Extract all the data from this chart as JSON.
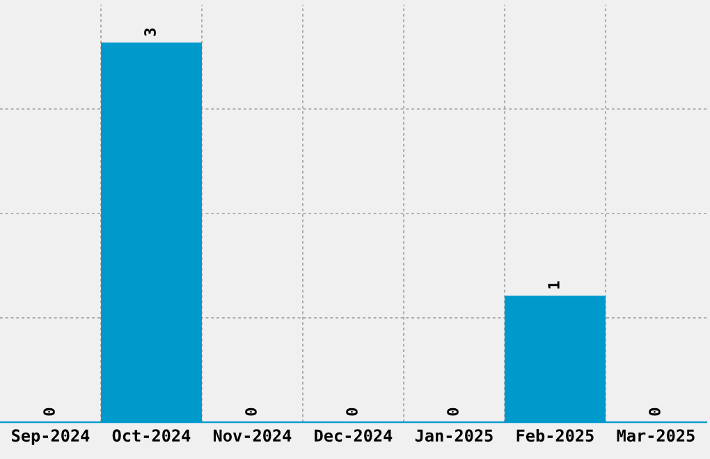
{
  "chart_data": {
    "type": "bar",
    "categories": [
      "Sep-2024",
      "Oct-2024",
      "Nov-2024",
      "Dec-2024",
      "Jan-2025",
      "Feb-2025",
      "Mar-2025"
    ],
    "values": [
      0,
      3,
      0,
      0,
      0,
      1,
      0
    ],
    "color": "#0099cc",
    "data_labels": true,
    "ylim": [
      0,
      3.3
    ],
    "yticks": [
      {
        "value": 0.825,
        "label": null
      },
      {
        "value": 1.65,
        "label": null
      },
      {
        "value": 2.475,
        "label": null
      }
    ],
    "tick_labels": "x",
    "grid": true
  }
}
